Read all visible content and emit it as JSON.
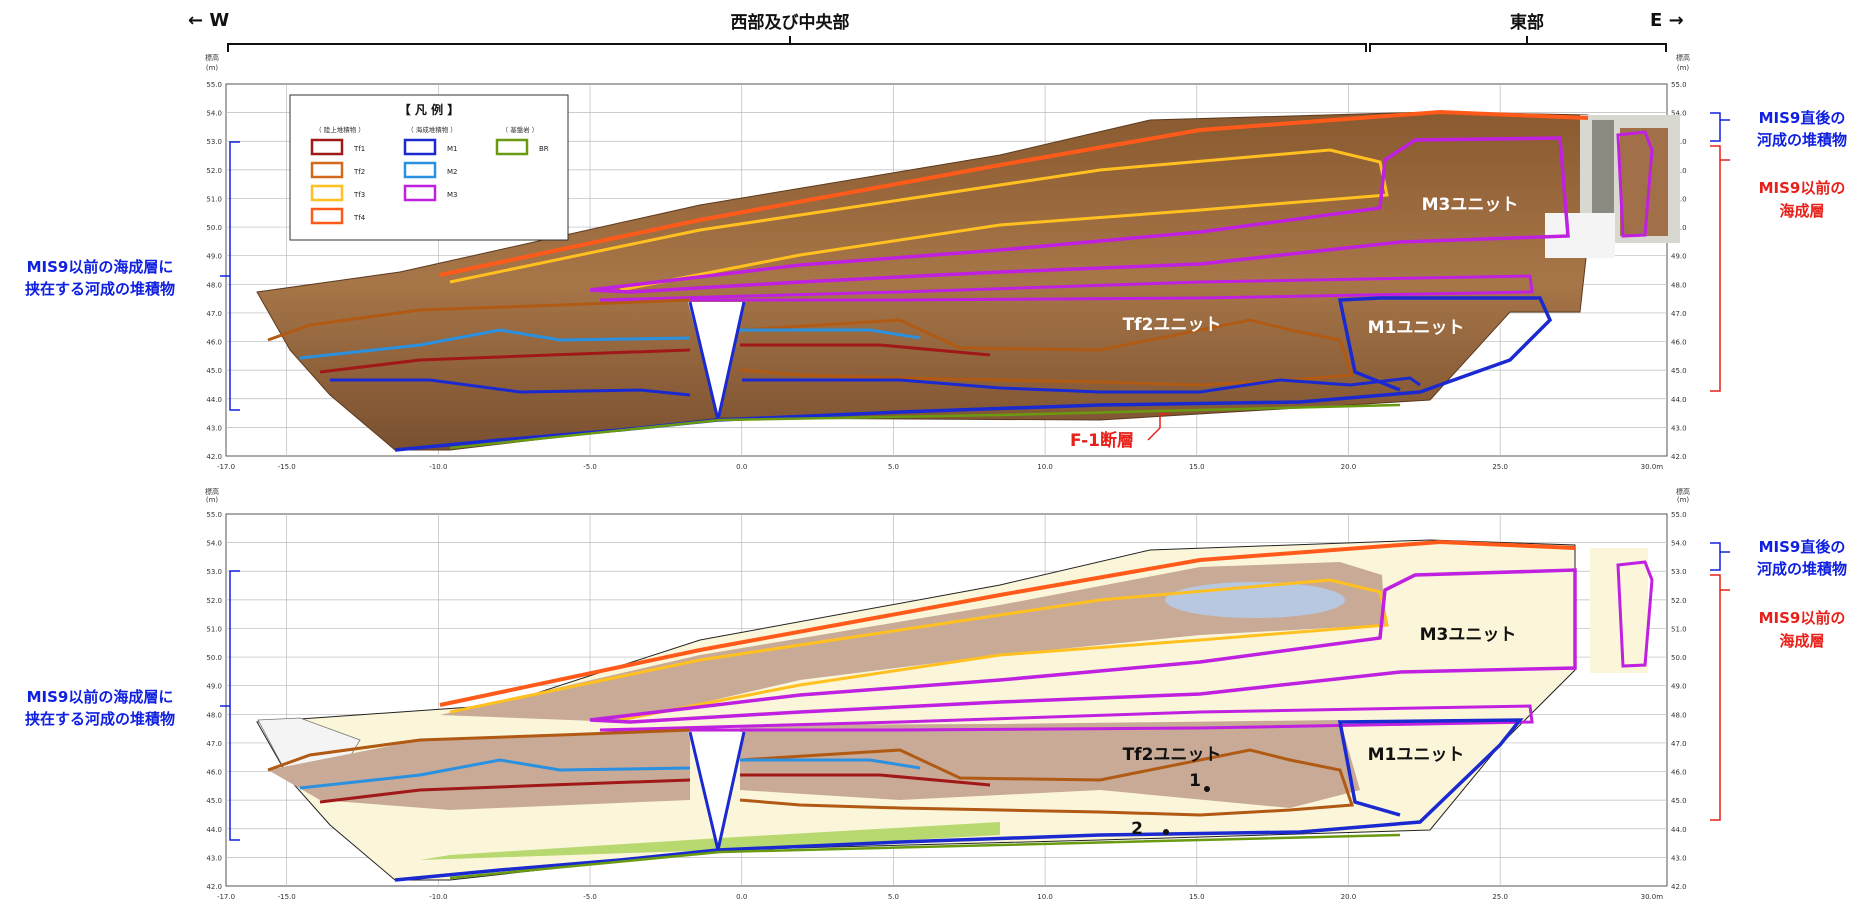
{
  "header": {
    "west_label": "← W",
    "east_label": "E →",
    "west_central": "西部及び中央部",
    "east": "東部"
  },
  "axes": {
    "elev_label_1": "標高",
    "elev_label_2": "(m)",
    "y_ticks": [
      "55.0",
      "54.0",
      "53.0",
      "52.0",
      "51.0",
      "50.0",
      "49.0",
      "48.0",
      "47.0",
      "46.0",
      "45.0",
      "44.0",
      "43.0",
      "42.0"
    ],
    "x_ticks": [
      "-17.0",
      "-15.0",
      "-10.0",
      "-5.0",
      "0.0",
      "5.0",
      "10.0",
      "15.0",
      "20.0",
      "25.0",
      "30.0m"
    ]
  },
  "legend": {
    "title": "【 凡 例 】",
    "group1": "（ 陸上堆積物 ）",
    "group2": "（ 海成堆積物 ）",
    "group3": "（ 基盤岩 ）",
    "items": [
      {
        "label": "Tf1",
        "color": "#a01818"
      },
      {
        "label": "Tf2",
        "color": "#d2691e"
      },
      {
        "label": "Tf3",
        "color": "#ffc020"
      },
      {
        "label": "Tf4",
        "color": "#ff5a1a"
      },
      {
        "label": "M1",
        "color": "#1a2ad0"
      },
      {
        "label": "M2",
        "color": "#2a90e0"
      },
      {
        "label": "M3",
        "color": "#c020e0"
      },
      {
        "label": "BR",
        "color": "#6a9a10"
      }
    ]
  },
  "annotations": {
    "left_1": "MIS9以前の海成層に",
    "left_2": "挟在する河成の堆積物",
    "right_a1": "MIS9直後の",
    "right_a2": "河成の堆積物",
    "right_b1": "MIS9以前の",
    "right_b2": "海成層",
    "fault": "F-1断層",
    "unit_m3": "M3ユニット",
    "unit_tf2": "Tf2ユニット",
    "unit_m1": "M1ユニット",
    "point_1": "1",
    "point_2": "2"
  },
  "colors": {
    "red": "#e8201a",
    "blue": "#1020e0",
    "photo_soil": "#9a6a3c",
    "sketch_fill": "#fbf6da",
    "tf_fill": "#c8aa96"
  }
}
